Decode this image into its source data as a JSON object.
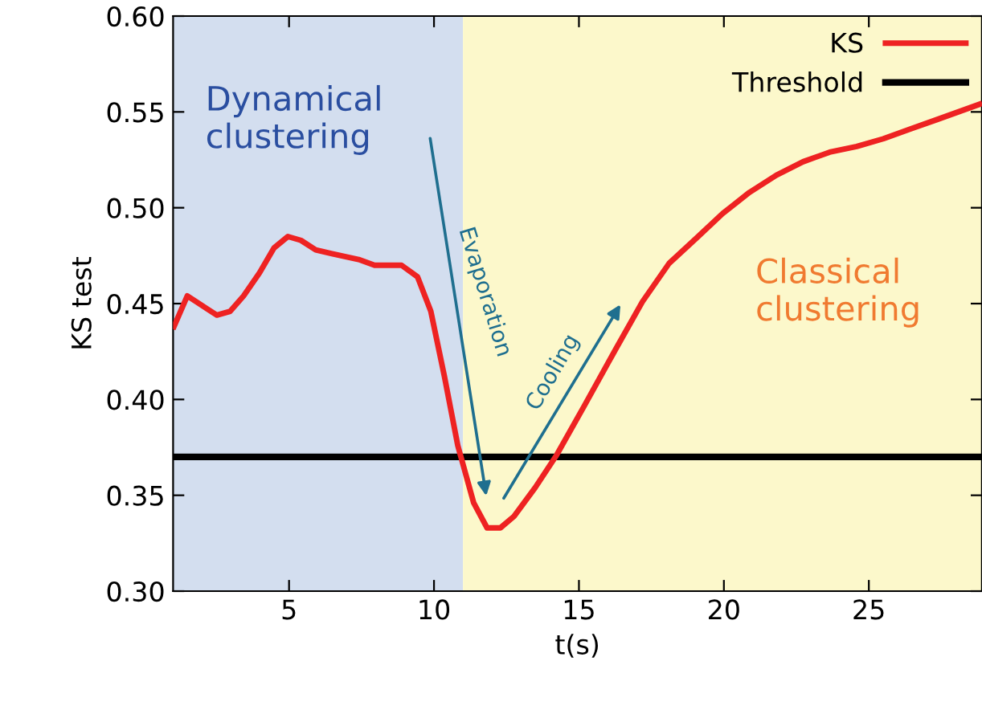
{
  "chart_data": {
    "type": "line",
    "xlabel": "t(s)",
    "ylabel": "KS test",
    "xlim": [
      1,
      28.9
    ],
    "xticks": [
      5,
      10,
      15,
      20,
      25
    ],
    "ylim": [
      0.3,
      0.6
    ],
    "yticks": [
      {
        "value": 0.3,
        "label": "0.30"
      },
      {
        "value": 0.35,
        "label": "0.35"
      },
      {
        "value": 0.4,
        "label": "0.40"
      },
      {
        "value": 0.45,
        "label": "0.45"
      },
      {
        "value": 0.5,
        "label": "0.50"
      },
      {
        "value": 0.55,
        "label": "0.55"
      },
      {
        "value": 0.6,
        "label": "0.60"
      }
    ],
    "series": [
      {
        "name": "KS",
        "color": "#ee2222",
        "x": [
          1.03,
          1.49,
          2.51,
          2.97,
          3.43,
          3.98,
          4.48,
          4.96,
          5.41,
          5.92,
          6.48,
          7.4,
          7.95,
          8.88,
          9.43,
          9.89,
          10.36,
          10.82,
          11.37,
          11.83,
          12.29,
          12.76,
          13.49,
          14.23,
          15.16,
          16.26,
          17.19,
          18.11,
          19.04,
          19.96,
          20.88,
          21.81,
          22.73,
          23.65,
          24.58,
          25.5,
          26.42,
          27.35,
          28.82
        ],
        "values": [
          0.438,
          0.454,
          0.444,
          0.446,
          0.454,
          0.466,
          0.479,
          0.485,
          0.483,
          0.478,
          0.476,
          0.473,
          0.47,
          0.47,
          0.464,
          0.446,
          0.412,
          0.376,
          0.346,
          0.333,
          0.333,
          0.339,
          0.354,
          0.371,
          0.396,
          0.426,
          0.451,
          0.471,
          0.484,
          0.497,
          0.508,
          0.517,
          0.524,
          0.529,
          0.532,
          0.536,
          0.541,
          0.546,
          0.554
        ]
      }
    ],
    "ref_lines": [
      {
        "axis": "y",
        "value": 0.37,
        "label": "Threshold",
        "color": "#000000"
      }
    ],
    "bands": [
      {
        "axis": "x",
        "from": 1,
        "to": 11,
        "label": "Dynamical\nclustering",
        "color": "#d3deef"
      },
      {
        "axis": "x",
        "from": 11,
        "to": 28.9,
        "label": "Classical\nclustering",
        "color": "#fcf8cb"
      }
    ],
    "annotations": [
      "Evaporation",
      "Cooling"
    ],
    "legend": "top right",
    "grid": false,
    "marker": "none",
    "line_style": "solid"
  }
}
